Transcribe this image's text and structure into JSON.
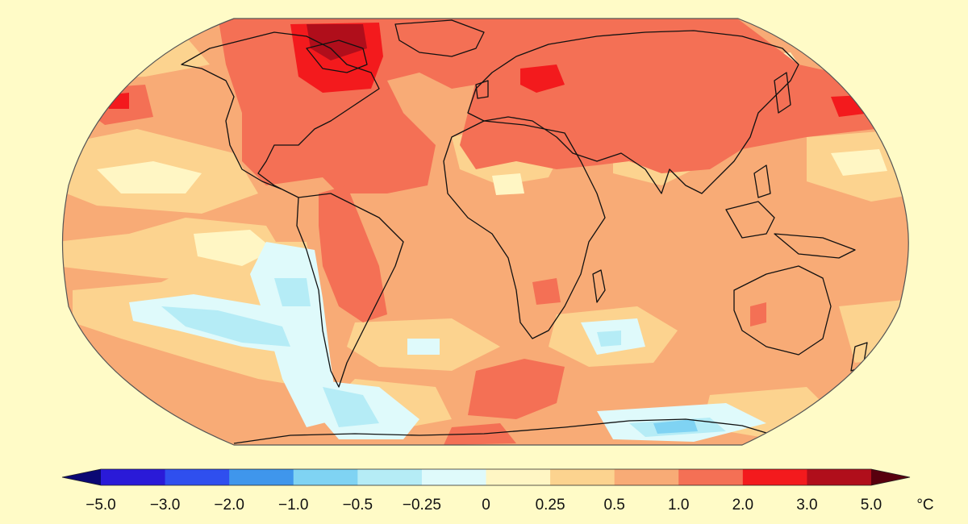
{
  "map": {
    "projection": "Robinson",
    "variable": "surface temperature anomaly",
    "background_color": "#fffbc7"
  },
  "legend": {
    "unit": "°C",
    "tick_labels": [
      "−5.0",
      "−3.0",
      "−2.0",
      "−1.0",
      "−0.5",
      "−0.25",
      "0",
      "0.25",
      "0.5",
      "1.0",
      "2.0",
      "3.0",
      "5.0"
    ],
    "bins": [
      {
        "from": -5.0,
        "to": -3.0,
        "color": "#2a1ad8"
      },
      {
        "from": -3.0,
        "to": -2.0,
        "color": "#2f4fef"
      },
      {
        "from": -2.0,
        "to": -1.0,
        "color": "#3f96ec"
      },
      {
        "from": -1.0,
        "to": -0.5,
        "color": "#7fd3f3"
      },
      {
        "from": -0.5,
        "to": -0.25,
        "color": "#b5ecf6"
      },
      {
        "from": -0.25,
        "to": 0.0,
        "color": "#dffafb"
      },
      {
        "from": 0.0,
        "to": 0.25,
        "color": "#fff6c4"
      },
      {
        "from": 0.25,
        "to": 0.5,
        "color": "#fcd38f"
      },
      {
        "from": 0.5,
        "to": 1.0,
        "color": "#f8ab76"
      },
      {
        "from": 1.0,
        "to": 2.0,
        "color": "#f47055"
      },
      {
        "from": 2.0,
        "to": 3.0,
        "color": "#f31a1d"
      },
      {
        "from": 3.0,
        "to": 5.0,
        "color": "#b00e1b"
      }
    ],
    "under_color": "#0b0874",
    "over_color": "#58000e"
  }
}
